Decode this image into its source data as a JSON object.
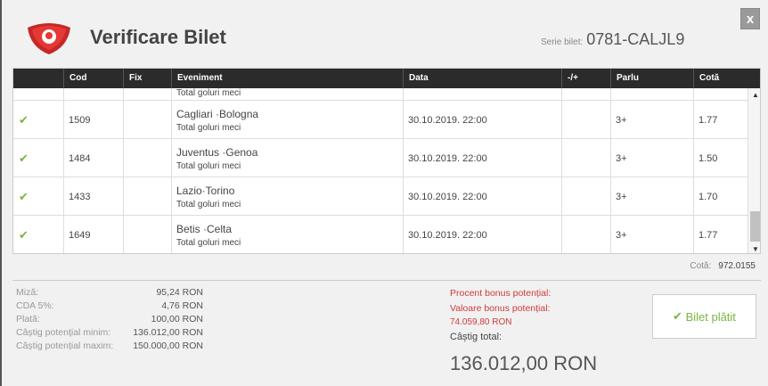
{
  "dialog": {
    "title": "Verificare Bilet",
    "close_label": "x",
    "serie_label": "Serie bilet:",
    "serie_value": "0781-CALJL9"
  },
  "table": {
    "headers": [
      "",
      "Cod",
      "Fix",
      "Eveniment",
      "Data",
      "-/+",
      "Parlu",
      "Cotă"
    ],
    "partial_row": {
      "subtitle": "Total goluri meci"
    },
    "rows": [
      {
        "cod": "1509",
        "fix": "",
        "event": "Cagliari ·Bologna",
        "market": "Total goluri meci",
        "date": "30.10.2019. 22:00",
        "pm": "",
        "parlu": "3+",
        "cota": "1.77",
        "status": "check"
      },
      {
        "cod": "1484",
        "fix": "",
        "event": "Juventus ·Genoa",
        "market": "Total goluri meci",
        "date": "30.10.2019. 22:00",
        "pm": "",
        "parlu": "3+",
        "cota": "1.50",
        "status": "check"
      },
      {
        "cod": "1433",
        "fix": "",
        "event": "Lazio·Torino",
        "market": "Total goluri meci",
        "date": "30.10.2019. 22:00",
        "pm": "",
        "parlu": "3+",
        "cota": "1.70",
        "status": "check"
      },
      {
        "cod": "1649",
        "fix": "",
        "event": "Betis ·Celta",
        "market": "Total goluri meci",
        "date": "30.10.2019. 22:00",
        "pm": "",
        "parlu": "3+",
        "cota": "1.77",
        "status": "check"
      }
    ]
  },
  "total_cota": {
    "label": "Cotă:",
    "value": "972.0155"
  },
  "summary": [
    {
      "label": "Miză:",
      "value": "95,24 RON"
    },
    {
      "label": "CDA 5%:",
      "value": "4,76 RON"
    },
    {
      "label": "Plată:",
      "value": "100,00 RON"
    },
    {
      "label": "Câștig potențial minim:",
      "value": "136.012,00 RON"
    },
    {
      "label": "Câștig potențial maxim:",
      "value": "150.000,00 RON"
    }
  ],
  "bonus": {
    "percent_label": "Procent bonus potențial:",
    "value_label": "Valoare bonus potențial:",
    "value": "74.059,80 RON",
    "total_label": "Câștig total:",
    "total": "136.012,00 RON"
  },
  "status_button": {
    "label": "Bilet plătit",
    "icon": "check-icon"
  },
  "colors": {
    "accent_red": "#d03a3a",
    "success": "#7cb342",
    "header": "#2b2b2b"
  }
}
